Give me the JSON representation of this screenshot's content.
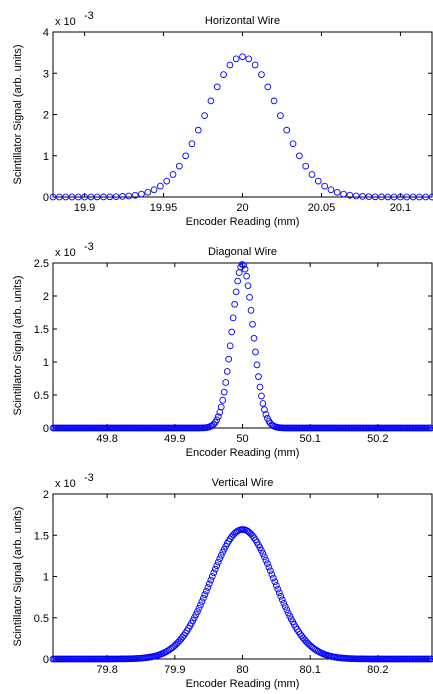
{
  "chart_data": [
    {
      "type": "scatter",
      "title": "Horizontal Wire",
      "xlabel": "Encoder Reading (mm)",
      "ylabel": "Scintillator Signal (arb. units)",
      "y_exponent": "x 10",
      "y_exponent_power": "-3",
      "xlim": [
        19.88,
        20.12
      ],
      "ylim": [
        0,
        4
      ],
      "xticks": [
        19.9,
        19.95,
        20,
        20.05,
        20.1
      ],
      "xtick_labels": [
        "19.9",
        "19.95",
        "20",
        "20.05",
        "20.1"
      ],
      "yticks": [
        0,
        1,
        2,
        3,
        4
      ],
      "ytick_labels": [
        "0",
        "1",
        "2",
        "3",
        "4"
      ],
      "marker": "circle",
      "color": "#0000ff",
      "grid": false,
      "series": [
        {
          "gaussian": {
            "center": 20.0,
            "peak": 3.4,
            "sigma": 0.023
          },
          "x_start": 19.88,
          "x_end": 20.12,
          "x_step": 0.004
        }
      ]
    },
    {
      "type": "scatter",
      "title": "Diagonal Wire",
      "xlabel": "Encoder Reading (mm)",
      "ylabel": "Scintillator Signal (arb. units)",
      "y_exponent": "x 10",
      "y_exponent_power": "-3",
      "xlim": [
        49.72,
        50.28
      ],
      "ylim": [
        0,
        2.5
      ],
      "xticks": [
        49.8,
        49.9,
        50,
        50.1,
        50.2
      ],
      "xtick_labels": [
        "49.8",
        "49.9",
        "50",
        "50.1",
        "50.2"
      ],
      "yticks": [
        0,
        0.5,
        1,
        1.5,
        2,
        2.5
      ],
      "ytick_labels": [
        "0",
        "0.5",
        "1",
        "1.5",
        "2",
        "2.5"
      ],
      "marker": "circle",
      "color": "#0000ff",
      "grid": false,
      "series": [
        {
          "gaussian": {
            "center": 50.0,
            "peak": 2.48,
            "sigma": 0.0155
          },
          "x_start": 49.72,
          "x_end": 50.28,
          "x_step": 0.0022
        }
      ]
    },
    {
      "type": "scatter",
      "title": "Vertical Wire",
      "xlabel": "Encoder Reading (mm)",
      "ylabel": "Scintillator Signal (arb. units)",
      "y_exponent": "x 10",
      "y_exponent_power": "-3",
      "xlim": [
        79.72,
        80.28
      ],
      "ylim": [
        0,
        2
      ],
      "xticks": [
        79.8,
        79.9,
        80,
        80.1,
        80.2
      ],
      "xtick_labels": [
        "79.8",
        "79.9",
        "80",
        "80.1",
        "80.2"
      ],
      "yticks": [
        0,
        0.5,
        1,
        1.5,
        2
      ],
      "ytick_labels": [
        "0",
        "0.5",
        "1",
        "1.5",
        "2"
      ],
      "marker": "circle",
      "color": "#0000ff",
      "grid": false,
      "series": [
        {
          "gaussian": {
            "center": 80.0,
            "peak": 1.57,
            "sigma": 0.047
          },
          "x_start": 79.72,
          "x_end": 80.28,
          "x_step": 0.0022
        }
      ]
    }
  ]
}
